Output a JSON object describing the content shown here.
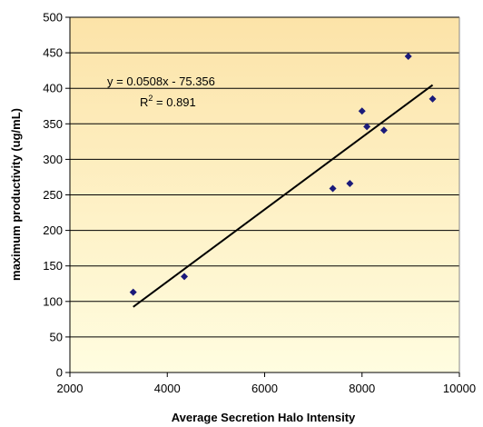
{
  "chart_data": {
    "type": "scatter",
    "xlabel": "Average Secretion Halo Intensity",
    "ylabel": "maximum productivity (ug/mL)",
    "xlim": [
      2000,
      10000
    ],
    "ylim": [
      0,
      500
    ],
    "xticks": [
      2000,
      4000,
      6000,
      8000,
      10000
    ],
    "yticks": [
      0,
      50,
      100,
      150,
      200,
      250,
      300,
      350,
      400,
      450,
      500
    ],
    "grid": "horizontal",
    "background_gradient": [
      "#fce3a8",
      "#fffde0"
    ],
    "marker_color": "#1a1a7a",
    "points": [
      {
        "x": 3300,
        "y": 113
      },
      {
        "x": 4350,
        "y": 135
      },
      {
        "x": 7400,
        "y": 259
      },
      {
        "x": 7750,
        "y": 266
      },
      {
        "x": 8000,
        "y": 368
      },
      {
        "x": 8100,
        "y": 346
      },
      {
        "x": 8450,
        "y": 341
      },
      {
        "x": 8950,
        "y": 445
      },
      {
        "x": 9450,
        "y": 385
      }
    ],
    "trendline": {
      "slope": 0.0508,
      "intercept": -75.356,
      "x_range": [
        3300,
        9450
      ],
      "equation_label": "y = 0.0508x - 75.356",
      "r2_prefix": "R",
      "r2_sup": "2",
      "r2_value": " = 0.891"
    }
  }
}
